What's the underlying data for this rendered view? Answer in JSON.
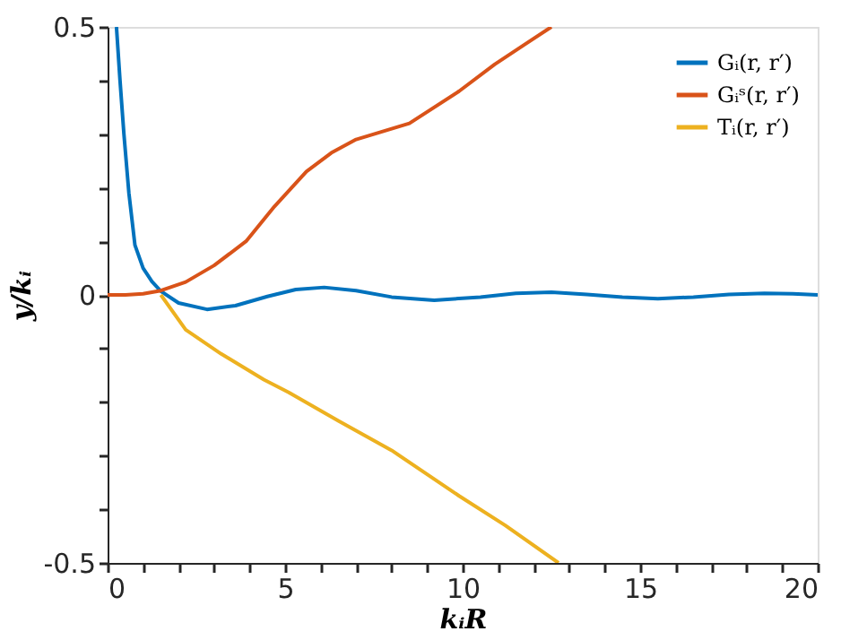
{
  "chart_data": {
    "type": "line",
    "xlabel": "kᵢR",
    "ylabel": "y/kᵢ",
    "xlim": [
      0,
      20
    ],
    "ylim": [
      -0.5,
      0.5
    ],
    "xticks": [
      0,
      {
        "value": 1,
        "label": null
      },
      {
        "value": 2,
        "label": null
      },
      {
        "value": 3,
        "label": null
      },
      {
        "value": 4,
        "label": null
      },
      5,
      {
        "value": 6,
        "label": null
      },
      {
        "value": 7,
        "label": null
      },
      {
        "value": 8,
        "label": null
      },
      {
        "value": 9,
        "label": null
      },
      10,
      {
        "value": 11,
        "label": null
      },
      {
        "value": 12,
        "label": null
      },
      {
        "value": 13,
        "label": null
      },
      {
        "value": 14,
        "label": null
      },
      15,
      {
        "value": 16,
        "label": null
      },
      {
        "value": 17,
        "label": null
      },
      {
        "value": 18,
        "label": null
      },
      {
        "value": 19,
        "label": null
      },
      20
    ],
    "yticks": [
      {
        "value": -0.5,
        "label": "-0.5"
      },
      {
        "value": -0.4,
        "label": null
      },
      {
        "value": -0.3,
        "label": null
      },
      {
        "value": -0.2,
        "label": null
      },
      {
        "value": -0.1,
        "label": null
      },
      0,
      {
        "value": 0.1,
        "label": null
      },
      {
        "value": 0.2,
        "label": null
      },
      {
        "value": 0.3,
        "label": null
      },
      {
        "value": 0.4,
        "label": null
      },
      0.5
    ],
    "grid": false,
    "legend": "top right",
    "marker": "none",
    "line_style": "solid",
    "series": [
      {
        "name": "Gᵢ(r, r′)",
        "color": "#0072bd",
        "x": [
          0.25,
          0.35,
          0.46,
          0.6,
          0.77,
          1.0,
          1.25,
          1.5,
          2.0,
          2.8,
          3.6,
          4.5,
          5.3,
          6.1,
          7.0,
          8.0,
          9.2,
          10.5,
          11.5,
          12.5,
          13.5,
          14.5,
          15.5,
          16.5,
          17.5,
          18.5,
          19.3,
          20
        ],
        "values": [
          0.5,
          0.4,
          0.3,
          0.19,
          0.093,
          0.05,
          0.025,
          0.007,
          -0.015,
          -0.027,
          -0.02,
          -0.003,
          0.01,
          0.014,
          0.008,
          -0.004,
          -0.01,
          -0.004,
          0.003,
          0.005,
          0.001,
          -0.004,
          -0.007,
          -0.004,
          0.001,
          0.003,
          0.002,
          0.0
        ]
      },
      {
        "name": "Gᵢˢ(r, r′)",
        "color": "#d95319",
        "x": [
          0,
          0.5,
          1.0,
          1.5,
          2.2,
          3.0,
          3.9,
          4.7,
          5.6,
          6.3,
          7.0,
          8.5,
          9.9,
          10.9,
          11.7,
          12.5
        ],
        "values": [
          0.0,
          0.0,
          0.002,
          0.008,
          0.024,
          0.055,
          0.1,
          0.165,
          0.23,
          0.265,
          0.29,
          0.32,
          0.38,
          0.43,
          0.465,
          0.5
        ]
      },
      {
        "name": "Tᵢ(r, r′)",
        "color": "#edb120",
        "x": [
          1.5,
          2.2,
          3.2,
          4.4,
          5.1,
          6.5,
          8.0,
          9.9,
          11.2,
          12.7
        ],
        "values": [
          0.0,
          -0.065,
          -0.11,
          -0.158,
          -0.182,
          -0.235,
          -0.29,
          -0.375,
          -0.43,
          -0.5
        ]
      }
    ]
  }
}
